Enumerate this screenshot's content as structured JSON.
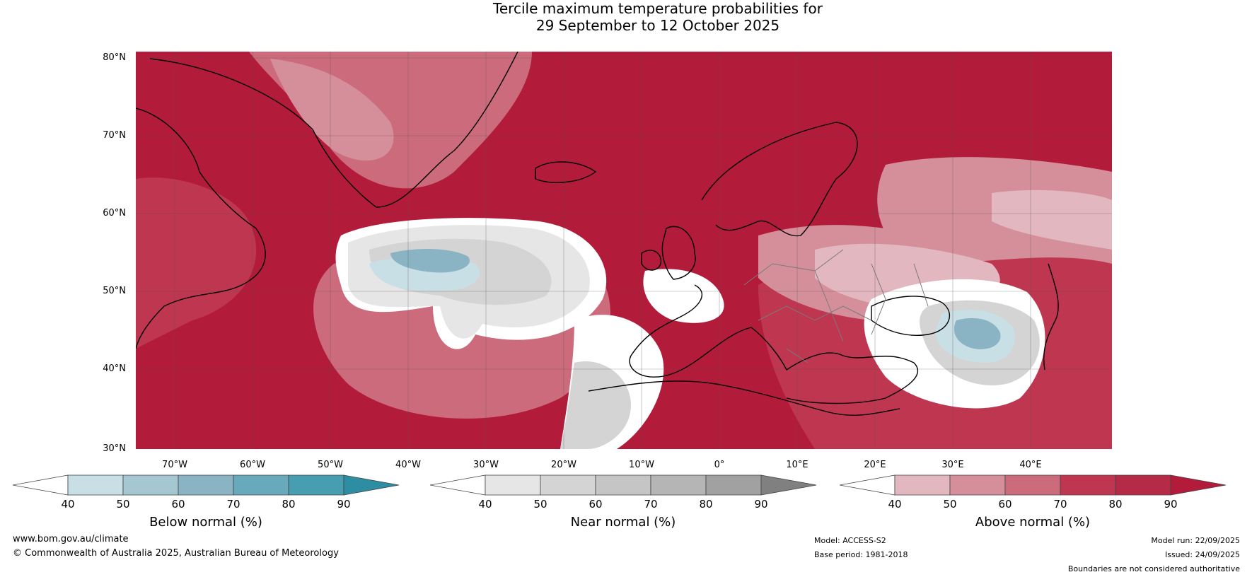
{
  "title": {
    "line1": "Tercile maximum temperature probabilities for",
    "line2": "29 September to 12 October 2025"
  },
  "map": {
    "lat_labels": [
      "80°N",
      "70°N",
      "60°N",
      "50°N",
      "40°N",
      "30°N"
    ],
    "lon_labels": [
      "70°W",
      "60°W",
      "50°W",
      "40°W",
      "30°W",
      "20°W",
      "10°W",
      "0°",
      "10°E",
      "20°E",
      "30°E",
      "40°E"
    ],
    "colors": {
      "above_90": "#b31b3a",
      "above_80": "#bf3650",
      "above_70": "#cc6b7c",
      "above_60": "#d58f9a",
      "above_50": "#e3b7bf",
      "near_40": "#e6e6e6",
      "near_50": "#d4d4d4",
      "below_40": "#c9dfe6",
      "below_60": "#8ab4c4",
      "blank": "#ffffff"
    }
  },
  "legends": [
    {
      "caption": "Below normal (%)",
      "ticks": [
        "40",
        "50",
        "60",
        "70",
        "80",
        "90"
      ],
      "colors": [
        "#ffffff",
        "#c9dfe6",
        "#a5c7d1",
        "#8ab4c4",
        "#68aabb",
        "#479eb0",
        "#2d8ea3"
      ]
    },
    {
      "caption": "Near normal (%)",
      "ticks": [
        "40",
        "50",
        "60",
        "70",
        "80",
        "90"
      ],
      "colors": [
        "#ffffff",
        "#e6e6e6",
        "#d4d4d4",
        "#c5c5c5",
        "#b5b5b5",
        "#a1a1a1",
        "#808080"
      ]
    },
    {
      "caption": "Above normal (%)",
      "ticks": [
        "40",
        "50",
        "60",
        "70",
        "80",
        "90"
      ],
      "colors": [
        "#ffffff",
        "#e3b7bf",
        "#d58f9a",
        "#cc6b7c",
        "#bf3650",
        "#b52a47",
        "#b31b3a"
      ]
    }
  ],
  "footer": {
    "website": "www.bom.gov.au/climate",
    "copyright": "© Commonwealth of Australia 2025, Australian Bureau of Meteorology",
    "model": "Model: ACCESS-S2",
    "base_period": "Base period: 1981-2018",
    "model_run": "Model run: 22/09/2025",
    "issued": "Issued: 24/09/2025",
    "disclaimer": "Boundaries are not considered authoritative"
  }
}
